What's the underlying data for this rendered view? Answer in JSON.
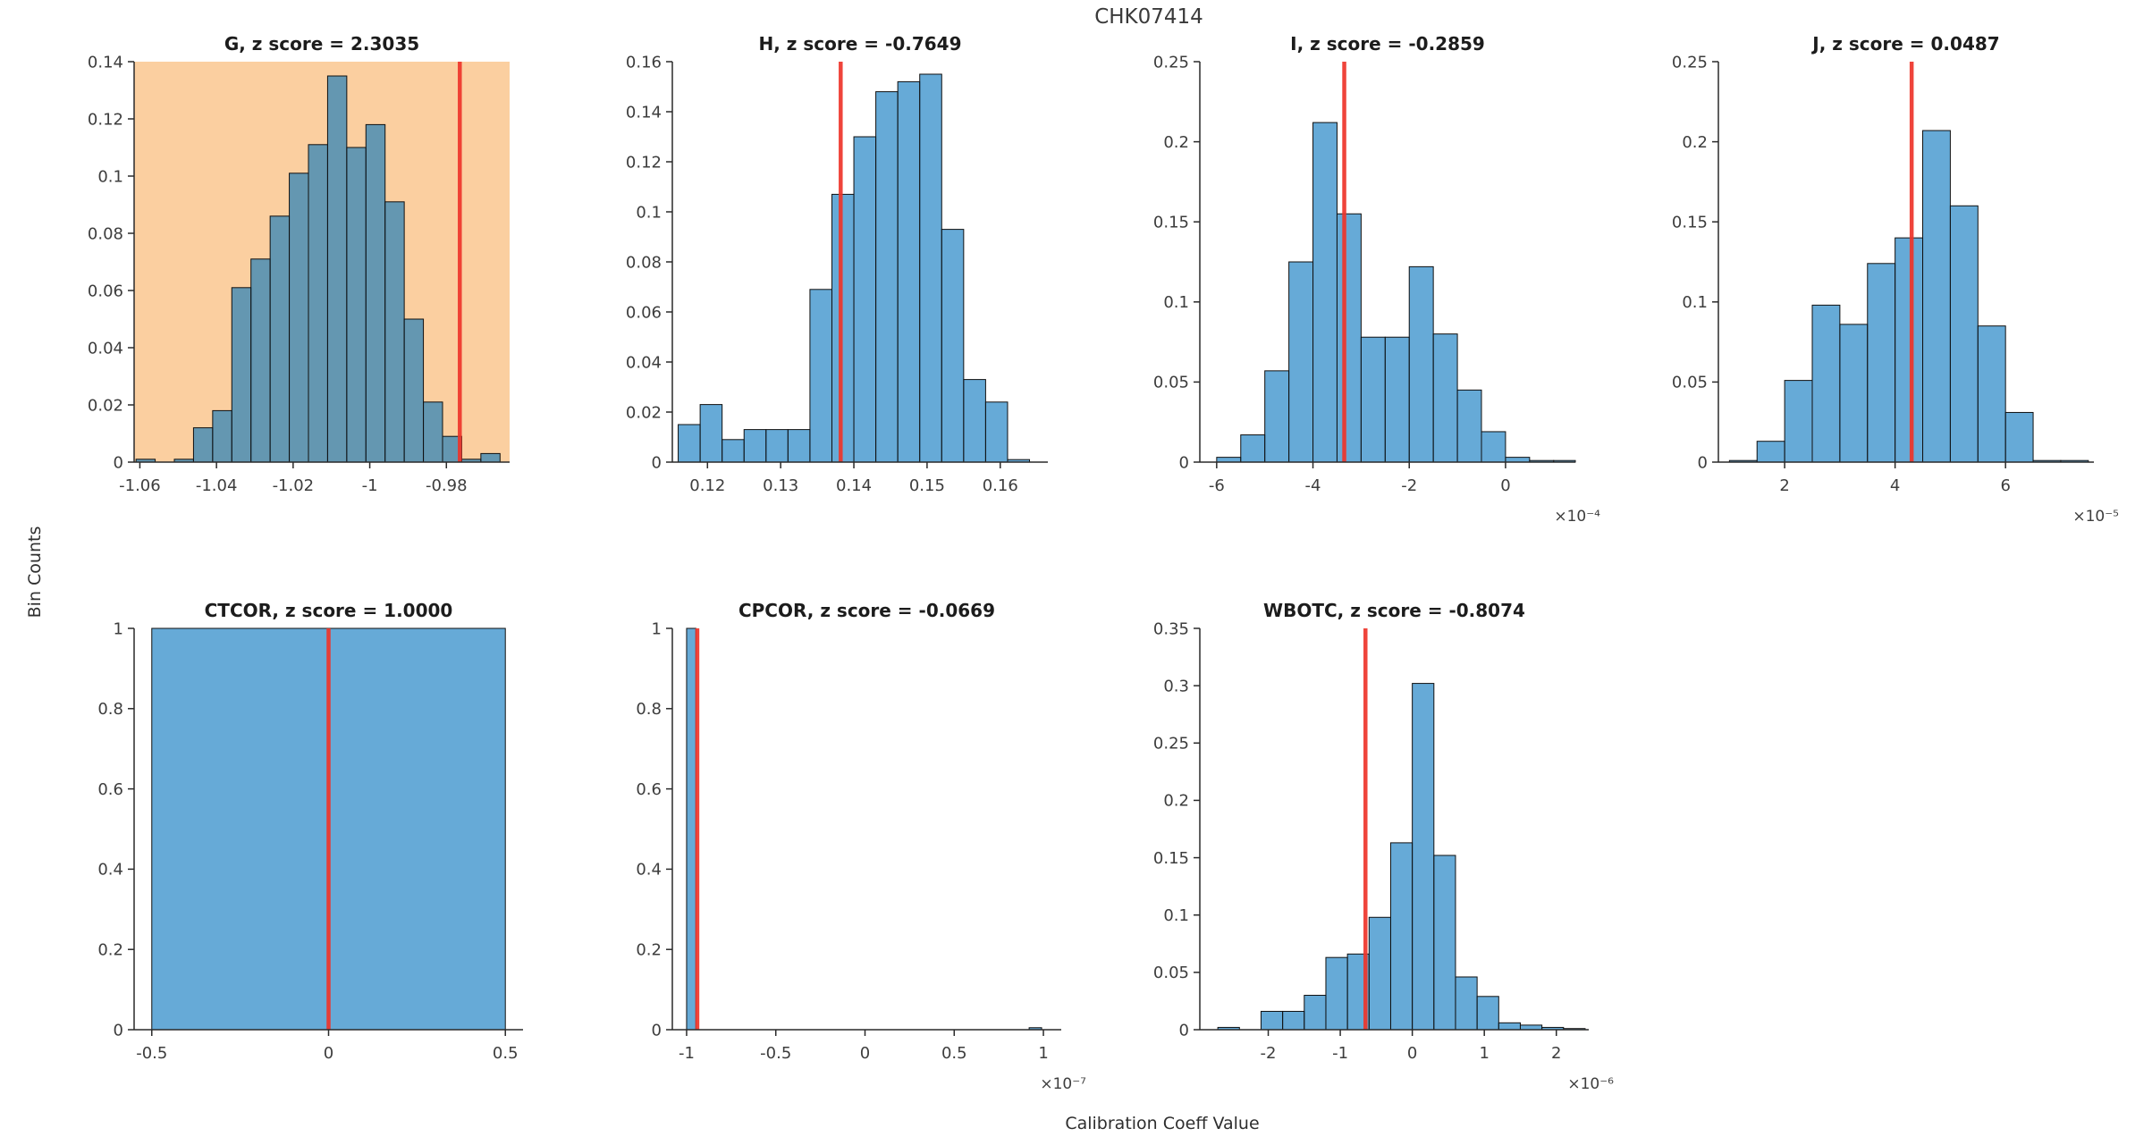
{
  "figure": {
    "title": "CHK07414",
    "ylabel": "Bin Counts",
    "xlabel": "Calibration Coeff Value"
  },
  "colors": {
    "bar_fill": "#0072BD",
    "bar_fill_opacity": 0.6,
    "bar_edge": "#101010",
    "red_line": "#ee352b",
    "highlight_background": "#fbcfa0",
    "axis_line": "#2a2a2a",
    "tick_text": "#3d3d3d",
    "title_text": "#1c1c1c"
  },
  "chart_data": [
    {
      "type": "bar",
      "name": "G",
      "title": "G, z score = 2.3035",
      "z_score": 2.3035,
      "highlighted": true,
      "xlim": [
        -1.0615,
        -0.9635
      ],
      "ylim": [
        0,
        0.14
      ],
      "yticks": [
        0,
        0.02,
        0.04,
        0.06,
        0.08,
        0.1,
        0.12,
        0.14
      ],
      "ytick_labels": [
        "0",
        "0.02",
        "0.04",
        "0.06",
        "0.08",
        "0.1",
        "0.12",
        "0.14"
      ],
      "xticks": [
        -1.06,
        -1.04,
        -1.02,
        -1.0,
        -0.98
      ],
      "xtick_labels": [
        "-1.06",
        "-1.04",
        "-1.02",
        "-1",
        "-0.98"
      ],
      "x_multiplier": "",
      "red_line_x": -0.9765,
      "bars": [
        [
          -1.061,
          -1.056,
          0.001
        ],
        [
          -1.051,
          -1.046,
          0.001
        ],
        [
          -1.046,
          -1.041,
          0.012
        ],
        [
          -1.041,
          -1.036,
          0.018
        ],
        [
          -1.036,
          -1.031,
          0.061
        ],
        [
          -1.031,
          -1.026,
          0.071
        ],
        [
          -1.026,
          -1.021,
          0.086
        ],
        [
          -1.021,
          -1.016,
          0.101
        ],
        [
          -1.016,
          -1.011,
          0.111
        ],
        [
          -1.011,
          -1.006,
          0.135
        ],
        [
          -1.006,
          -1.001,
          0.11
        ],
        [
          -1.001,
          -0.996,
          0.118
        ],
        [
          -0.996,
          -0.991,
          0.091
        ],
        [
          -0.991,
          -0.986,
          0.05
        ],
        [
          -0.986,
          -0.981,
          0.021
        ],
        [
          -0.981,
          -0.976,
          0.009
        ],
        [
          -0.976,
          -0.971,
          0.001
        ],
        [
          -0.971,
          -0.966,
          0.003
        ]
      ]
    },
    {
      "type": "bar",
      "name": "H",
      "title": "H, z score = -0.7649",
      "z_score": -0.7649,
      "highlighted": false,
      "xlim": [
        0.1152,
        0.1665
      ],
      "ylim": [
        0,
        0.16
      ],
      "yticks": [
        0,
        0.02,
        0.04,
        0.06,
        0.08,
        0.1,
        0.12,
        0.14,
        0.16
      ],
      "ytick_labels": [
        "0",
        "0.02",
        "0.04",
        "0.06",
        "0.08",
        "0.1",
        "0.12",
        "0.14",
        "0.16"
      ],
      "xticks": [
        0.12,
        0.13,
        0.14,
        0.15,
        0.16
      ],
      "xtick_labels": [
        "0.12",
        "0.13",
        "0.14",
        "0.15",
        "0.16"
      ],
      "x_multiplier": "",
      "red_line_x": 0.1382,
      "bars": [
        [
          0.116,
          0.119,
          0.015
        ],
        [
          0.119,
          0.122,
          0.023
        ],
        [
          0.122,
          0.125,
          0.009
        ],
        [
          0.125,
          0.128,
          0.013
        ],
        [
          0.128,
          0.131,
          0.013
        ],
        [
          0.131,
          0.134,
          0.013
        ],
        [
          0.134,
          0.137,
          0.069
        ],
        [
          0.137,
          0.14,
          0.107
        ],
        [
          0.14,
          0.143,
          0.13
        ],
        [
          0.143,
          0.146,
          0.148
        ],
        [
          0.146,
          0.149,
          0.152
        ],
        [
          0.149,
          0.152,
          0.155
        ],
        [
          0.152,
          0.155,
          0.093
        ],
        [
          0.155,
          0.158,
          0.033
        ],
        [
          0.158,
          0.161,
          0.024
        ],
        [
          0.161,
          0.164,
          0.001
        ]
      ]
    },
    {
      "type": "bar",
      "name": "I",
      "title": "I, z score = -0.2859",
      "z_score": -0.2859,
      "highlighted": false,
      "xlim": [
        -0.000635,
        0.000145
      ],
      "ylim": [
        0,
        0.25
      ],
      "yticks": [
        0,
        0.05,
        0.1,
        0.15,
        0.2,
        0.25
      ],
      "ytick_labels": [
        "0",
        "0.05",
        "0.1",
        "0.15",
        "0.2",
        "0.25"
      ],
      "xticks": [
        -0.0006,
        -0.0004,
        -0.0002,
        0
      ],
      "xtick_labels": [
        "-6",
        "-4",
        "-2",
        "0"
      ],
      "x_multiplier": "×10⁻⁴",
      "red_line_x": -0.000335,
      "bars": [
        [
          -0.0006,
          -0.00055,
          0.003
        ],
        [
          -0.00055,
          -0.0005,
          0.017
        ],
        [
          -0.0005,
          -0.00045,
          0.057
        ],
        [
          -0.00045,
          -0.0004,
          0.125
        ],
        [
          -0.0004,
          -0.00035,
          0.212
        ],
        [
          -0.00035,
          -0.0003,
          0.155
        ],
        [
          -0.0003,
          -0.00025,
          0.078
        ],
        [
          -0.00025,
          -0.0002,
          0.078
        ],
        [
          -0.0002,
          -0.00015,
          0.122
        ],
        [
          -0.00015,
          -0.0001,
          0.08
        ],
        [
          -0.0001,
          -5e-05,
          0.045
        ],
        [
          -5e-05,
          0,
          0.019
        ],
        [
          0,
          5e-05,
          0.003
        ],
        [
          5e-05,
          0.0001,
          0.001
        ],
        [
          0.0001,
          0.000145,
          0.001
        ]
      ]
    },
    {
      "type": "bar",
      "name": "J",
      "title": "J, z score = 0.0487",
      "z_score": 0.0487,
      "highlighted": false,
      "xlim": [
        8e-06,
        7.6e-05
      ],
      "ylim": [
        0,
        0.25
      ],
      "yticks": [
        0,
        0.05,
        0.1,
        0.15,
        0.2,
        0.25
      ],
      "ytick_labels": [
        "0",
        "0.05",
        "0.1",
        "0.15",
        "0.2",
        "0.25"
      ],
      "xticks": [
        2e-05,
        4e-05,
        6e-05
      ],
      "xtick_labels": [
        "2",
        "4",
        "6"
      ],
      "x_multiplier": "×10⁻⁵",
      "red_line_x": 4.3e-05,
      "bars": [
        [
          1e-05,
          1.5e-05,
          0.001
        ],
        [
          1.5e-05,
          2e-05,
          0.013
        ],
        [
          2e-05,
          2.5e-05,
          0.051
        ],
        [
          2.5e-05,
          3e-05,
          0.098
        ],
        [
          3e-05,
          3.5e-05,
          0.086
        ],
        [
          3.5e-05,
          4e-05,
          0.124
        ],
        [
          4e-05,
          4.5e-05,
          0.14
        ],
        [
          4.5e-05,
          5e-05,
          0.207
        ],
        [
          5e-05,
          5.5e-05,
          0.16
        ],
        [
          5.5e-05,
          6e-05,
          0.085
        ],
        [
          6e-05,
          6.5e-05,
          0.031
        ],
        [
          6.5e-05,
          7e-05,
          0.001
        ],
        [
          7e-05,
          7.5e-05,
          0.001
        ]
      ]
    },
    {
      "type": "bar",
      "name": "CTCOR",
      "title": "CTCOR, z score = 1.0000",
      "z_score": 1.0,
      "highlighted": false,
      "xlim": [
        -0.55,
        0.55
      ],
      "ylim": [
        0,
        1
      ],
      "yticks": [
        0,
        0.2,
        0.4,
        0.6,
        0.8,
        1
      ],
      "ytick_labels": [
        "0",
        "0.2",
        "0.4",
        "0.6",
        "0.8",
        "1"
      ],
      "xticks": [
        -0.5,
        0,
        0.5
      ],
      "xtick_labels": [
        "-0.5",
        "0",
        "0.5"
      ],
      "x_multiplier": "",
      "red_line_x": 0,
      "bars": [
        [
          -0.5,
          0.5,
          1.0
        ]
      ]
    },
    {
      "type": "bar",
      "name": "CPCOR",
      "title": "CPCOR, z score = -0.0669",
      "z_score": -0.0669,
      "highlighted": false,
      "xlim": [
        -1.08e-07,
        1.1e-07
      ],
      "ylim": [
        0,
        1
      ],
      "yticks": [
        0,
        0.2,
        0.4,
        0.6,
        0.8,
        1
      ],
      "ytick_labels": [
        "0",
        "0.2",
        "0.4",
        "0.6",
        "0.8",
        "1"
      ],
      "xticks": [
        -1e-07,
        -5e-08,
        0,
        5e-08,
        1e-07
      ],
      "xtick_labels": [
        "-1",
        "-0.5",
        "0",
        "0.5",
        "1"
      ],
      "x_multiplier": "×10⁻⁷",
      "red_line_x": -9.4e-08,
      "bars": [
        [
          -1e-07,
          -9.48e-08,
          1.0
        ],
        [
          9.2e-08,
          9.9e-08,
          0.005
        ]
      ]
    },
    {
      "type": "bar",
      "name": "WBOTC",
      "title": "WBOTC, z score = -0.8074",
      "z_score": -0.8074,
      "highlighted": false,
      "xlim": [
        -2.95e-06,
        2.45e-06
      ],
      "ylim": [
        0,
        0.35
      ],
      "yticks": [
        0,
        0.05,
        0.1,
        0.15,
        0.2,
        0.25,
        0.3,
        0.35
      ],
      "ytick_labels": [
        "0",
        "0.05",
        "0.1",
        "0.15",
        "0.2",
        "0.25",
        "0.3",
        "0.35"
      ],
      "xticks": [
        -2e-06,
        -1e-06,
        0,
        1e-06,
        2e-06
      ],
      "xtick_labels": [
        "-2",
        "-1",
        "0",
        "1",
        "2"
      ],
      "x_multiplier": "×10⁻⁶",
      "red_line_x": -6.5e-07,
      "bars": [
        [
          -2.7e-06,
          -2.4e-06,
          0.002
        ],
        [
          -2.1e-06,
          -1.8e-06,
          0.016
        ],
        [
          -1.8e-06,
          -1.5e-06,
          0.016
        ],
        [
          -1.5e-06,
          -1.2e-06,
          0.03
        ],
        [
          -1.2e-06,
          -9e-07,
          0.063
        ],
        [
          -9e-07,
          -6e-07,
          0.066
        ],
        [
          -6e-07,
          -3e-07,
          0.098
        ],
        [
          -3e-07,
          0,
          0.163
        ],
        [
          0,
          3e-07,
          0.302
        ],
        [
          3e-07,
          6e-07,
          0.152
        ],
        [
          6e-07,
          9e-07,
          0.046
        ],
        [
          9e-07,
          1.2e-06,
          0.029
        ],
        [
          1.2e-06,
          1.5e-06,
          0.006
        ],
        [
          1.5e-06,
          1.8e-06,
          0.004
        ],
        [
          1.8e-06,
          2.1e-06,
          0.002
        ],
        [
          2.1e-06,
          2.4e-06,
          0.001
        ]
      ]
    }
  ]
}
